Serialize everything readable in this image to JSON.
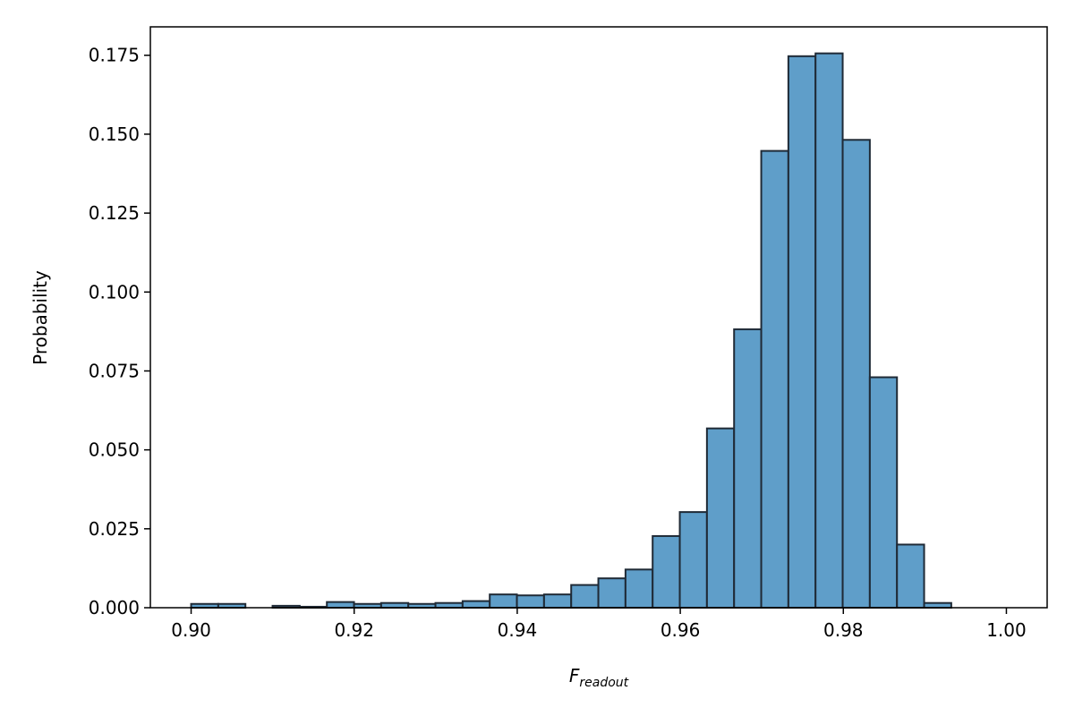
{
  "chart_data": {
    "type": "bar",
    "xlabel_main": "F",
    "xlabel_sub": "readout",
    "ylabel": "Probability",
    "xlim": [
      0.895,
      1.005
    ],
    "ylim": [
      0,
      0.184
    ],
    "x_ticks": [
      "0.90",
      "0.92",
      "0.94",
      "0.96",
      "0.98",
      "1.00"
    ],
    "y_ticks": [
      "0.000",
      "0.025",
      "0.050",
      "0.075",
      "0.100",
      "0.125",
      "0.150",
      "0.175"
    ],
    "bin_start": 0.9,
    "bin_width": 0.00333,
    "values": [
      0.0012,
      0.0012,
      0.0,
      0.0006,
      0.0003,
      0.0018,
      0.0012,
      0.0015,
      0.0012,
      0.0015,
      0.0021,
      0.0042,
      0.0039,
      0.0042,
      0.0072,
      0.0093,
      0.0121,
      0.0227,
      0.0303,
      0.0568,
      0.0882,
      0.1447,
      0.1747,
      0.1756,
      0.1482,
      0.073,
      0.02,
      0.0015,
      0.0,
      0.0
    ],
    "bar_color": "#5f9ec9",
    "edge_color": "#1f2a36"
  }
}
